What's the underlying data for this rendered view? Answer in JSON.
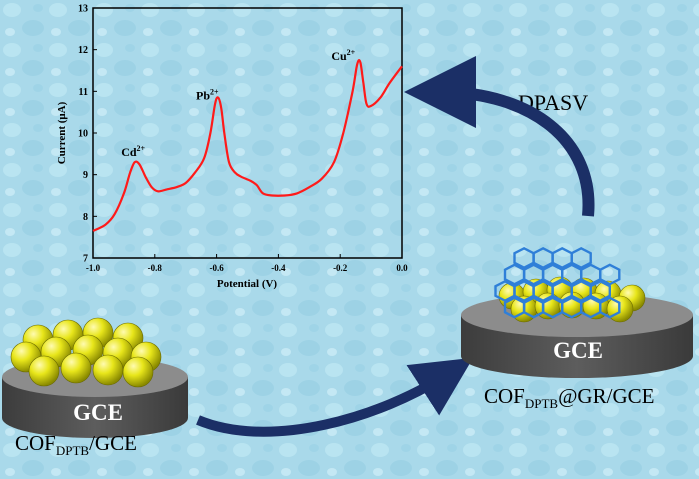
{
  "colors": {
    "background": "#a9d9ea",
    "curve": "#ff1a1a",
    "arrow": "#1b2f66",
    "electrode_top": "#8c8c8c",
    "electrode_side": "#4d4d4d",
    "sphere": "#e8e61a",
    "cof_lattice": "#2f7fd8"
  },
  "chart_data": {
    "type": "line",
    "title": "",
    "xlabel": "Potential (V)",
    "ylabel": "Current (μA)",
    "xlim": [
      -1.0,
      0.0
    ],
    "ylim": [
      7,
      13
    ],
    "xticks": [
      "-1.0",
      "-0.8",
      "-0.6",
      "-0.4",
      "-0.2",
      "0.0"
    ],
    "yticks": [
      "7",
      "8",
      "9",
      "10",
      "11",
      "12",
      "13"
    ],
    "grid": false,
    "series": [
      {
        "x": [
          -1.0,
          -0.96,
          -0.93,
          -0.9,
          -0.88,
          -0.865,
          -0.85,
          -0.83,
          -0.81,
          -0.79,
          -0.76,
          -0.73,
          -0.7,
          -0.67,
          -0.64,
          -0.62,
          -0.605,
          -0.595,
          -0.585,
          -0.575,
          -0.56,
          -0.54,
          -0.52,
          -0.49,
          -0.47,
          -0.45,
          -0.42,
          -0.38,
          -0.34,
          -0.3,
          -0.26,
          -0.22,
          -0.19,
          -0.16,
          -0.145,
          -0.135,
          -0.125,
          -0.115,
          -0.1,
          -0.07,
          -0.04,
          0.0
        ],
        "y": [
          7.65,
          7.8,
          8.05,
          8.55,
          9.05,
          9.3,
          9.25,
          8.95,
          8.7,
          8.6,
          8.65,
          8.7,
          8.8,
          9.05,
          9.4,
          10.0,
          10.7,
          10.85,
          10.6,
          10.0,
          9.3,
          9.05,
          8.95,
          8.85,
          8.75,
          8.55,
          8.5,
          8.5,
          8.55,
          8.7,
          8.9,
          9.3,
          10.0,
          11.0,
          11.65,
          11.7,
          11.2,
          10.7,
          10.65,
          10.85,
          11.2,
          11.6
        ]
      }
    ],
    "annotations": [
      {
        "base": "Cd",
        "sup": "2+",
        "x": -0.87,
        "y": 9.45
      },
      {
        "base": "Pb",
        "sup": "2+",
        "x": -0.63,
        "y": 10.8
      },
      {
        "base": "Cu",
        "sup": "2+",
        "x": -0.19,
        "y": 11.75
      }
    ]
  },
  "labels": {
    "dpasv": "DPASV",
    "gce": "GCE",
    "left_caption": {
      "main": "COF",
      "sub": "DPTB",
      "rest": "/GCE"
    },
    "right_caption": {
      "main": "COF",
      "sub": "DPTB",
      "rest": "@GR/GCE"
    }
  }
}
